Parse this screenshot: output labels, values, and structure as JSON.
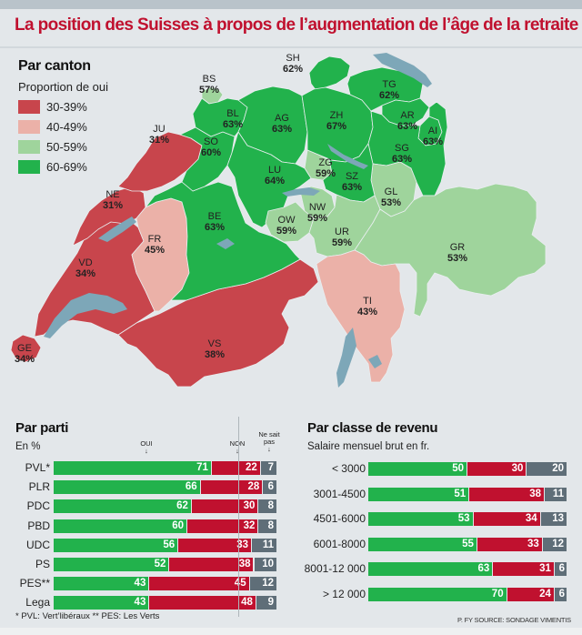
{
  "title": "La position des Suisses à propos de l’augmentation de l’âge de la retraite",
  "colors": {
    "c30_39": "#c8454c",
    "c40_49": "#ebb1a8",
    "c50_59": "#9fd49c",
    "c60_69": "#22b24c",
    "lake": "#7da7b8",
    "oui": "#22b24c",
    "non": "#c0112f",
    "nsp": "#5f6e78",
    "title": "#c0112f"
  },
  "map": {
    "heading": "Par canton",
    "subheading": "Proportion de oui",
    "legend": [
      {
        "label": "30-39%",
        "color_key": "c30_39"
      },
      {
        "label": "40-49%",
        "color_key": "c40_49"
      },
      {
        "label": "50-59%",
        "color_key": "c50_59"
      },
      {
        "label": "60-69%",
        "color_key": "c60_69"
      }
    ],
    "cantons": [
      {
        "code": "SH",
        "value": "62%"
      },
      {
        "code": "BS",
        "value": "57%"
      },
      {
        "code": "TG",
        "value": "62%"
      },
      {
        "code": "BL",
        "value": "63%"
      },
      {
        "code": "AG",
        "value": "63%"
      },
      {
        "code": "ZH",
        "value": "67%"
      },
      {
        "code": "AR",
        "value": "63%"
      },
      {
        "code": "JU",
        "value": "31%"
      },
      {
        "code": "SO",
        "value": "60%"
      },
      {
        "code": "AI",
        "value": "63%"
      },
      {
        "code": "SG",
        "value": "63%"
      },
      {
        "code": "ZG",
        "value": "59%"
      },
      {
        "code": "LU",
        "value": "64%"
      },
      {
        "code": "SZ",
        "value": "63%"
      },
      {
        "code": "NE",
        "value": "31%"
      },
      {
        "code": "GL",
        "value": "53%"
      },
      {
        "code": "NW",
        "value": "59%"
      },
      {
        "code": "OW",
        "value": "59%"
      },
      {
        "code": "FR",
        "value": "45%"
      },
      {
        "code": "BE",
        "value": "63%"
      },
      {
        "code": "UR",
        "value": "59%"
      },
      {
        "code": "GR",
        "value": "53%"
      },
      {
        "code": "VD",
        "value": "34%"
      },
      {
        "code": "TI",
        "value": "43%"
      },
      {
        "code": "VS",
        "value": "38%"
      },
      {
        "code": "GE",
        "value": "34%"
      }
    ]
  },
  "chart_data": [
    {
      "type": "bar",
      "orientation": "horizontal-stacked",
      "title": "Par parti",
      "subtitle": "En %",
      "series_headers": [
        "OUI",
        "NON",
        "Ne sait pas"
      ],
      "categories": [
        "PVL*",
        "PLR",
        "PDC",
        "PBD",
        "UDC",
        "PS",
        "PES**",
        "Lega"
      ],
      "series": [
        {
          "name": "OUI",
          "values": [
            71,
            66,
            62,
            60,
            56,
            52,
            43,
            43
          ]
        },
        {
          "name": "NON",
          "values": [
            22,
            28,
            30,
            32,
            33,
            38,
            45,
            48
          ]
        },
        {
          "name": "Ne sait pas",
          "values": [
            7,
            6,
            8,
            8,
            11,
            10,
            12,
            9
          ]
        }
      ],
      "footnote": "* PVL: Vert’libéraux  ** PES: Les Verts"
    },
    {
      "type": "bar",
      "orientation": "horizontal-stacked",
      "title": "Par classe de revenu",
      "subtitle": "Salaire mensuel brut en fr.",
      "categories": [
        "< 3000",
        "3001-4500",
        "4501-6000",
        "6001-8000",
        "8001-12 000",
        "> 12 000"
      ],
      "series": [
        {
          "name": "OUI",
          "values": [
            50,
            51,
            53,
            55,
            63,
            70
          ]
        },
        {
          "name": "NON",
          "values": [
            30,
            38,
            34,
            33,
            31,
            24
          ]
        },
        {
          "name": "Ne sait pas",
          "values": [
            20,
            11,
            13,
            12,
            6,
            6
          ]
        }
      ],
      "source": "P. FY SOURCE: SONDAGE VIMENTIS"
    }
  ]
}
